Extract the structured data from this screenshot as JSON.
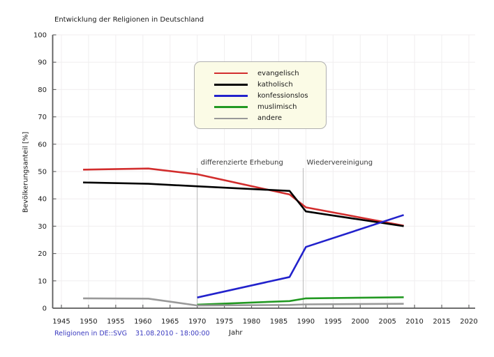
{
  "title": "Entwicklung der Religionen in Deutschland",
  "footer": {
    "source": "Religionen in DE::SVG",
    "timestamp": "31.08.2010 - 18:00:00"
  },
  "colors": {
    "grid": "#f0eeef",
    "axis": "#5a5a5a",
    "tick_text": "#1a1a1a",
    "annotation_line": "#b8b8b8",
    "footer_text": "#3a3ac0",
    "legend_bg": "#fbfbe6",
    "legend_border": "#b0b0b0",
    "background": "#ffffff"
  },
  "chart_data": {
    "type": "line",
    "title": "Entwicklung der Religionen in Deutschland",
    "xlabel": "Jahr",
    "ylabel": "Bevölkerungsanteil [%]",
    "xlim": [
      1943.5,
      2021
    ],
    "ylim": [
      0,
      100
    ],
    "xticks": [
      1945,
      1950,
      1955,
      1960,
      1965,
      1970,
      1975,
      1980,
      1985,
      1990,
      1995,
      2000,
      2005,
      2010,
      2015,
      2020
    ],
    "yticks": [
      0,
      10,
      20,
      30,
      40,
      50,
      60,
      70,
      80,
      90,
      100
    ],
    "grid": true,
    "legend_position": "upper-center",
    "series": [
      {
        "name": "evangelisch",
        "color": "#d22d2d",
        "points": [
          [
            1949,
            50.7
          ],
          [
            1961,
            51.1
          ],
          [
            1970,
            49.0
          ],
          [
            1987,
            41.6
          ],
          [
            1990,
            36.9
          ],
          [
            2008,
            30.2
          ]
        ]
      },
      {
        "name": "katholisch",
        "color": "#000000",
        "points": [
          [
            1949,
            46.0
          ],
          [
            1961,
            45.5
          ],
          [
            1970,
            44.6
          ],
          [
            1987,
            42.9
          ],
          [
            1990,
            35.4
          ],
          [
            2008,
            30.0
          ]
        ]
      },
      {
        "name": "konfessionslos",
        "color": "#2222cc",
        "points": [
          [
            1970,
            3.9
          ],
          [
            1987,
            11.4
          ],
          [
            1990,
            22.4
          ],
          [
            2008,
            34.1
          ]
        ]
      },
      {
        "name": "muslimisch",
        "color": "#229922",
        "points": [
          [
            1970,
            1.3
          ],
          [
            1987,
            2.6
          ],
          [
            1990,
            3.6
          ],
          [
            2008,
            4.0
          ]
        ]
      },
      {
        "name": "andere",
        "color": "#999999",
        "points": [
          [
            1949,
            3.6
          ],
          [
            1961,
            3.5
          ],
          [
            1970,
            1.0
          ],
          [
            1987,
            1.2
          ],
          [
            1990,
            1.4
          ],
          [
            2008,
            1.6
          ]
        ]
      }
    ],
    "annotations": [
      {
        "label": "differenzierte Erhebung",
        "year": 1970
      },
      {
        "label": "Wiedervereinigung",
        "year": 1989.5
      }
    ]
  }
}
